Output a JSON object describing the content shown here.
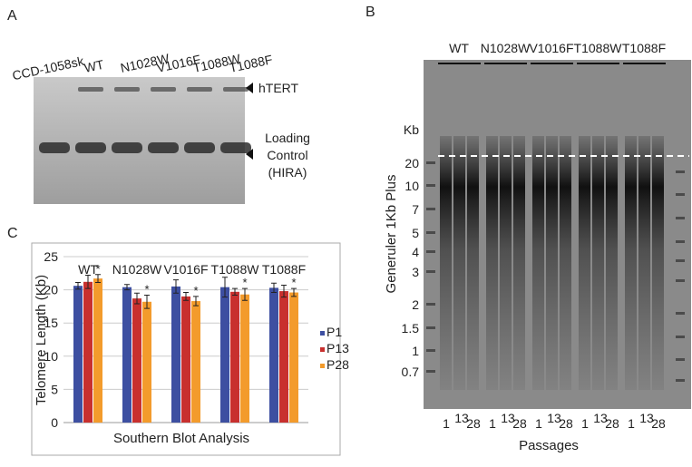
{
  "panel_a": {
    "letter": "A",
    "lanes": [
      "CCD-1058sk",
      "WT",
      "N1028W",
      "V1016F",
      "T1088W",
      "T1088F"
    ],
    "band_labels": {
      "top": "hTERT",
      "bottom": [
        "Loading",
        "Control",
        "(HIRA)"
      ]
    }
  },
  "panel_b": {
    "letter": "B",
    "groups": [
      "WT",
      "N1028W",
      "V1016F",
      "T1088W",
      "T1088F"
    ],
    "unit": "Kb",
    "ladder": [
      "20",
      "10",
      "7",
      "5",
      "4",
      "3",
      "2",
      "1.5",
      "1",
      "0.7"
    ],
    "y_label": "Generuler 1Kb Plus",
    "passages": [
      "1",
      "13",
      "28"
    ],
    "x_label": "Passages"
  },
  "chart_data": {
    "type": "bar",
    "letter": "C",
    "y_label": "Telomere Length (Kb)",
    "x_label": "Southern Blot Analysis",
    "categories": [
      "WT",
      "N1028W",
      "V1016F",
      "T1088W",
      "T1088F"
    ],
    "series": [
      {
        "name": "P1",
        "color": "#3d4fa1",
        "values": [
          20.6,
          20.4,
          20.5,
          20.4,
          20.3
        ],
        "errors": [
          0.5,
          0.4,
          1.0,
          1.5,
          0.7
        ]
      },
      {
        "name": "P13",
        "color": "#c8302e",
        "values": [
          21.2,
          18.7,
          19.0,
          19.7,
          19.8
        ],
        "errors": [
          1.0,
          0.8,
          0.6,
          0.5,
          0.9
        ]
      },
      {
        "name": "P28",
        "color": "#f39b2c",
        "values": [
          21.7,
          18.2,
          18.3,
          19.3,
          19.6
        ],
        "errors": [
          0.6,
          1.0,
          0.7,
          0.9,
          0.6
        ]
      }
    ],
    "significance_marks": [
      "*",
      "*",
      "*",
      "*",
      "*"
    ],
    "ylim": [
      0,
      25
    ],
    "yticks": [
      0,
      5,
      10,
      15,
      20,
      25
    ],
    "grid": true
  }
}
